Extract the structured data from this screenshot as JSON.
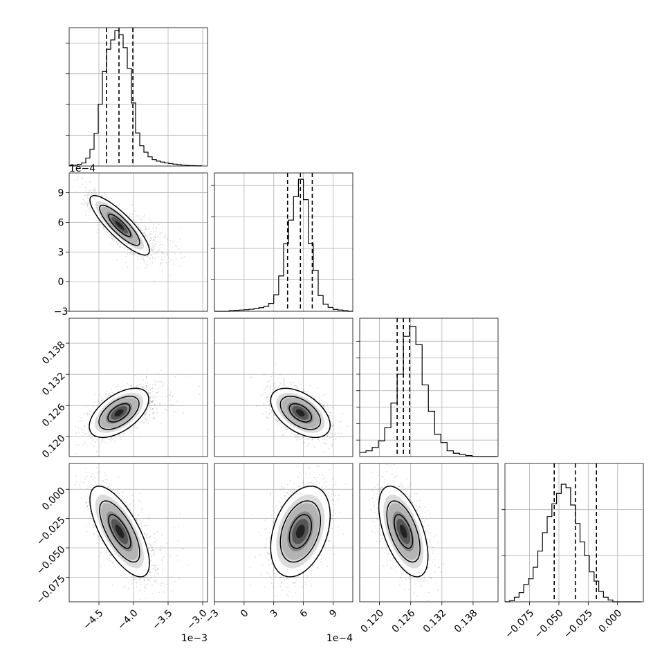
{
  "figure": {
    "type": "corner_plot",
    "parameters": [
      {
        "xlim": [
          -4.93,
          -2.93
        ],
        "xticks": [
          -4.5,
          -4.0,
          -3.5,
          -3.0
        ],
        "xtick_labels": [
          "−4.5",
          "−4.0",
          "−3.5",
          "−3.0"
        ],
        "offset": "1e−3"
      },
      {
        "xlim": [
          -3.0,
          11.0
        ],
        "xticks": [
          -3,
          0,
          3,
          6,
          9
        ],
        "xtick_labels": [
          "−3",
          "0",
          "3",
          "6",
          "9"
        ],
        "offset": "1e−4"
      },
      {
        "xlim": [
          0.1162,
          0.1428
        ],
        "xticks": [
          0.12,
          0.126,
          0.132,
          0.138
        ],
        "xtick_labels": [
          "0.120",
          "0.126",
          "0.132",
          "0.138"
        ],
        "offset": ""
      },
      {
        "xlim": [
          -0.096,
          0.022
        ],
        "xticks": [
          -0.075,
          -0.05,
          -0.025,
          0.0
        ],
        "xtick_labels": [
          "−0.075",
          "−0.050",
          "−0.025",
          "0.000"
        ],
        "offset": ""
      }
    ]
  },
  "chart_data": {
    "type": "corner",
    "grid": true,
    "histograms": [
      {
        "parameter": 0,
        "bin_edges": [
          -4.93,
          -4.87,
          -4.81,
          -4.75,
          -4.69,
          -4.63,
          -4.57,
          -4.51,
          -4.45,
          -4.39,
          -4.33,
          -4.27,
          -4.21,
          -4.15,
          -4.09,
          -4.03,
          -3.97,
          -3.91,
          -3.85,
          -3.79,
          -3.73,
          -3.67,
          -3.61,
          -3.55,
          -3.49,
          -3.43,
          -3.37,
          -3.31,
          -3.25,
          -3.19,
          -3.13,
          -3.07,
          -3.01
        ],
        "counts": [
          0.3,
          0.6,
          1.1,
          2.0,
          5.2,
          10.8,
          21.3,
          40.2,
          61.5,
          76.0,
          82.0,
          88.0,
          85.5,
          77.0,
          63.5,
          41.0,
          21.5,
          13.2,
          9.0,
          6.0,
          4.2,
          3.2,
          2.6,
          2.0,
          1.6,
          1.2,
          0.9,
          0.6,
          0.4,
          0.3,
          0.2,
          0.1
        ],
        "quantiles": [
          -4.39,
          -4.21,
          -4.01
        ],
        "yticks": [
          20,
          40,
          60,
          80
        ],
        "ymax": 90
      },
      {
        "parameter": 1,
        "bin_edges": [
          -3.0,
          -2.5,
          -2.0,
          -1.5,
          -1.0,
          -0.5,
          0.0,
          0.5,
          1.0,
          1.5,
          2.0,
          2.5,
          3.0,
          3.5,
          4.0,
          4.5,
          5.0,
          5.5,
          6.0,
          6.5,
          7.0,
          7.5,
          8.0,
          8.5,
          9.0,
          9.5,
          10.0,
          10.5,
          11.0
        ],
        "counts": [
          0.0,
          0.0,
          0.0,
          0.4,
          0.6,
          0.8,
          1.0,
          1.3,
          1.7,
          2.3,
          3.2,
          5.0,
          10.5,
          22.5,
          43.0,
          58.0,
          73.0,
          84.0,
          71.0,
          43.0,
          26.0,
          10.0,
          4.5,
          2.5,
          1.2,
          0.8,
          0.4,
          0.0
        ],
        "quantiles": [
          4.4,
          5.7,
          6.9
        ],
        "yticks": [
          20,
          40,
          60,
          80
        ],
        "ymax": 88
      },
      {
        "parameter": 2,
        "bin_edges": [
          0.1162,
          0.1174,
          0.1186,
          0.1198,
          0.121,
          0.1222,
          0.1234,
          0.1246,
          0.1258,
          0.127,
          0.1282,
          0.1294,
          0.1306,
          0.1318,
          0.133,
          0.1342,
          0.1354,
          0.1366,
          0.1378,
          0.139,
          0.1402,
          0.1414,
          0.1426
        ],
        "counts": [
          2.5,
          3.5,
          5.5,
          9.5,
          17.5,
          32.5,
          50.0,
          73.0,
          79.0,
          68.0,
          43.5,
          27.5,
          13.5,
          8.5,
          3.5,
          2.0,
          1.2,
          0.6,
          0.0,
          0.0,
          0.0,
          0.0
        ],
        "quantiles": [
          0.1234,
          0.1246,
          0.1258
        ],
        "yticks": [
          10,
          20,
          30,
          40,
          50,
          60,
          70
        ],
        "ymax": 84
      },
      {
        "parameter": 3,
        "bin_edges": [
          -0.096,
          -0.092,
          -0.088,
          -0.084,
          -0.08,
          -0.076,
          -0.072,
          -0.068,
          -0.064,
          -0.06,
          -0.056,
          -0.052,
          -0.048,
          -0.044,
          -0.04,
          -0.036,
          -0.032,
          -0.028,
          -0.024,
          -0.02,
          -0.016,
          -0.012,
          -0.008,
          -0.004,
          0.0,
          0.004,
          0.008,
          0.012,
          0.016,
          0.02
        ],
        "counts": [
          0.0,
          0.5,
          2.0,
          4.0,
          7.5,
          10.0,
          15.0,
          22.0,
          30.0,
          37.0,
          42.5,
          47.0,
          51.0,
          49.5,
          42.0,
          34.0,
          26.0,
          20.0,
          13.0,
          9.0,
          4.5,
          2.0,
          0.8,
          0.0,
          0.0,
          0.0,
          0.0,
          0.0,
          0.0
        ],
        "quantiles": [
          -0.054,
          -0.036,
          -0.018
        ],
        "yticks": [
          20,
          40
        ],
        "ymax": 60
      }
    ],
    "pairs": [
      {
        "x_param": 0,
        "y_param": 1,
        "mean": [
          -4.2,
          5.7
        ],
        "sd": [
          0.2,
          1.4
        ],
        "rho": -0.85,
        "yticks": [
          -3,
          0,
          3,
          6,
          9
        ],
        "ytick_labels": [
          "−3",
          "0",
          "3",
          "6",
          "9"
        ],
        "yoffset": "1e−4"
      },
      {
        "x_param": 0,
        "y_param": 2,
        "mean": [
          -4.21,
          0.1246
        ],
        "sd": [
          0.2,
          0.0022
        ],
        "rho": 0.55,
        "yticks": [
          0.12,
          0.126,
          0.132,
          0.138
        ],
        "ytick_labels": [
          "0.120",
          "0.126",
          "0.132",
          "0.138"
        ],
        "yoffset": ""
      },
      {
        "x_param": 1,
        "y_param": 2,
        "mean": [
          5.7,
          0.1246
        ],
        "sd": [
          1.4,
          0.0022
        ],
        "rho": -0.5,
        "yticks": [
          0.12,
          0.126,
          0.132,
          0.138
        ],
        "ytick_labels": [
          "0.120",
          "0.126",
          "0.132",
          "0.138"
        ],
        "yoffset": ""
      },
      {
        "x_param": 0,
        "y_param": 3,
        "mean": [
          -4.2,
          -0.036
        ],
        "sd": [
          0.2,
          0.018
        ],
        "rho": -0.7,
        "yticks": [
          -0.075,
          -0.05,
          -0.025,
          0.0
        ],
        "ytick_labels": [
          "−0.075",
          "−0.050",
          "−0.025",
          "0.000"
        ],
        "yoffset": ""
      },
      {
        "x_param": 1,
        "y_param": 3,
        "mean": [
          5.7,
          -0.036
        ],
        "sd": [
          1.4,
          0.018
        ],
        "rho": 0.35,
        "yticks": [
          -0.075,
          -0.05,
          -0.025,
          0.0
        ],
        "ytick_labels": [
          "−0.075",
          "−0.050",
          "−0.025",
          "0.000"
        ],
        "yoffset": ""
      },
      {
        "x_param": 2,
        "y_param": 3,
        "mean": [
          0.1246,
          -0.036
        ],
        "sd": [
          0.0022,
          0.018
        ],
        "rho": -0.55,
        "yticks": [
          -0.075,
          -0.05,
          -0.025,
          0.0
        ],
        "ytick_labels": [
          "−0.075",
          "−0.050",
          "−0.025",
          "0.000"
        ],
        "yoffset": ""
      }
    ]
  }
}
